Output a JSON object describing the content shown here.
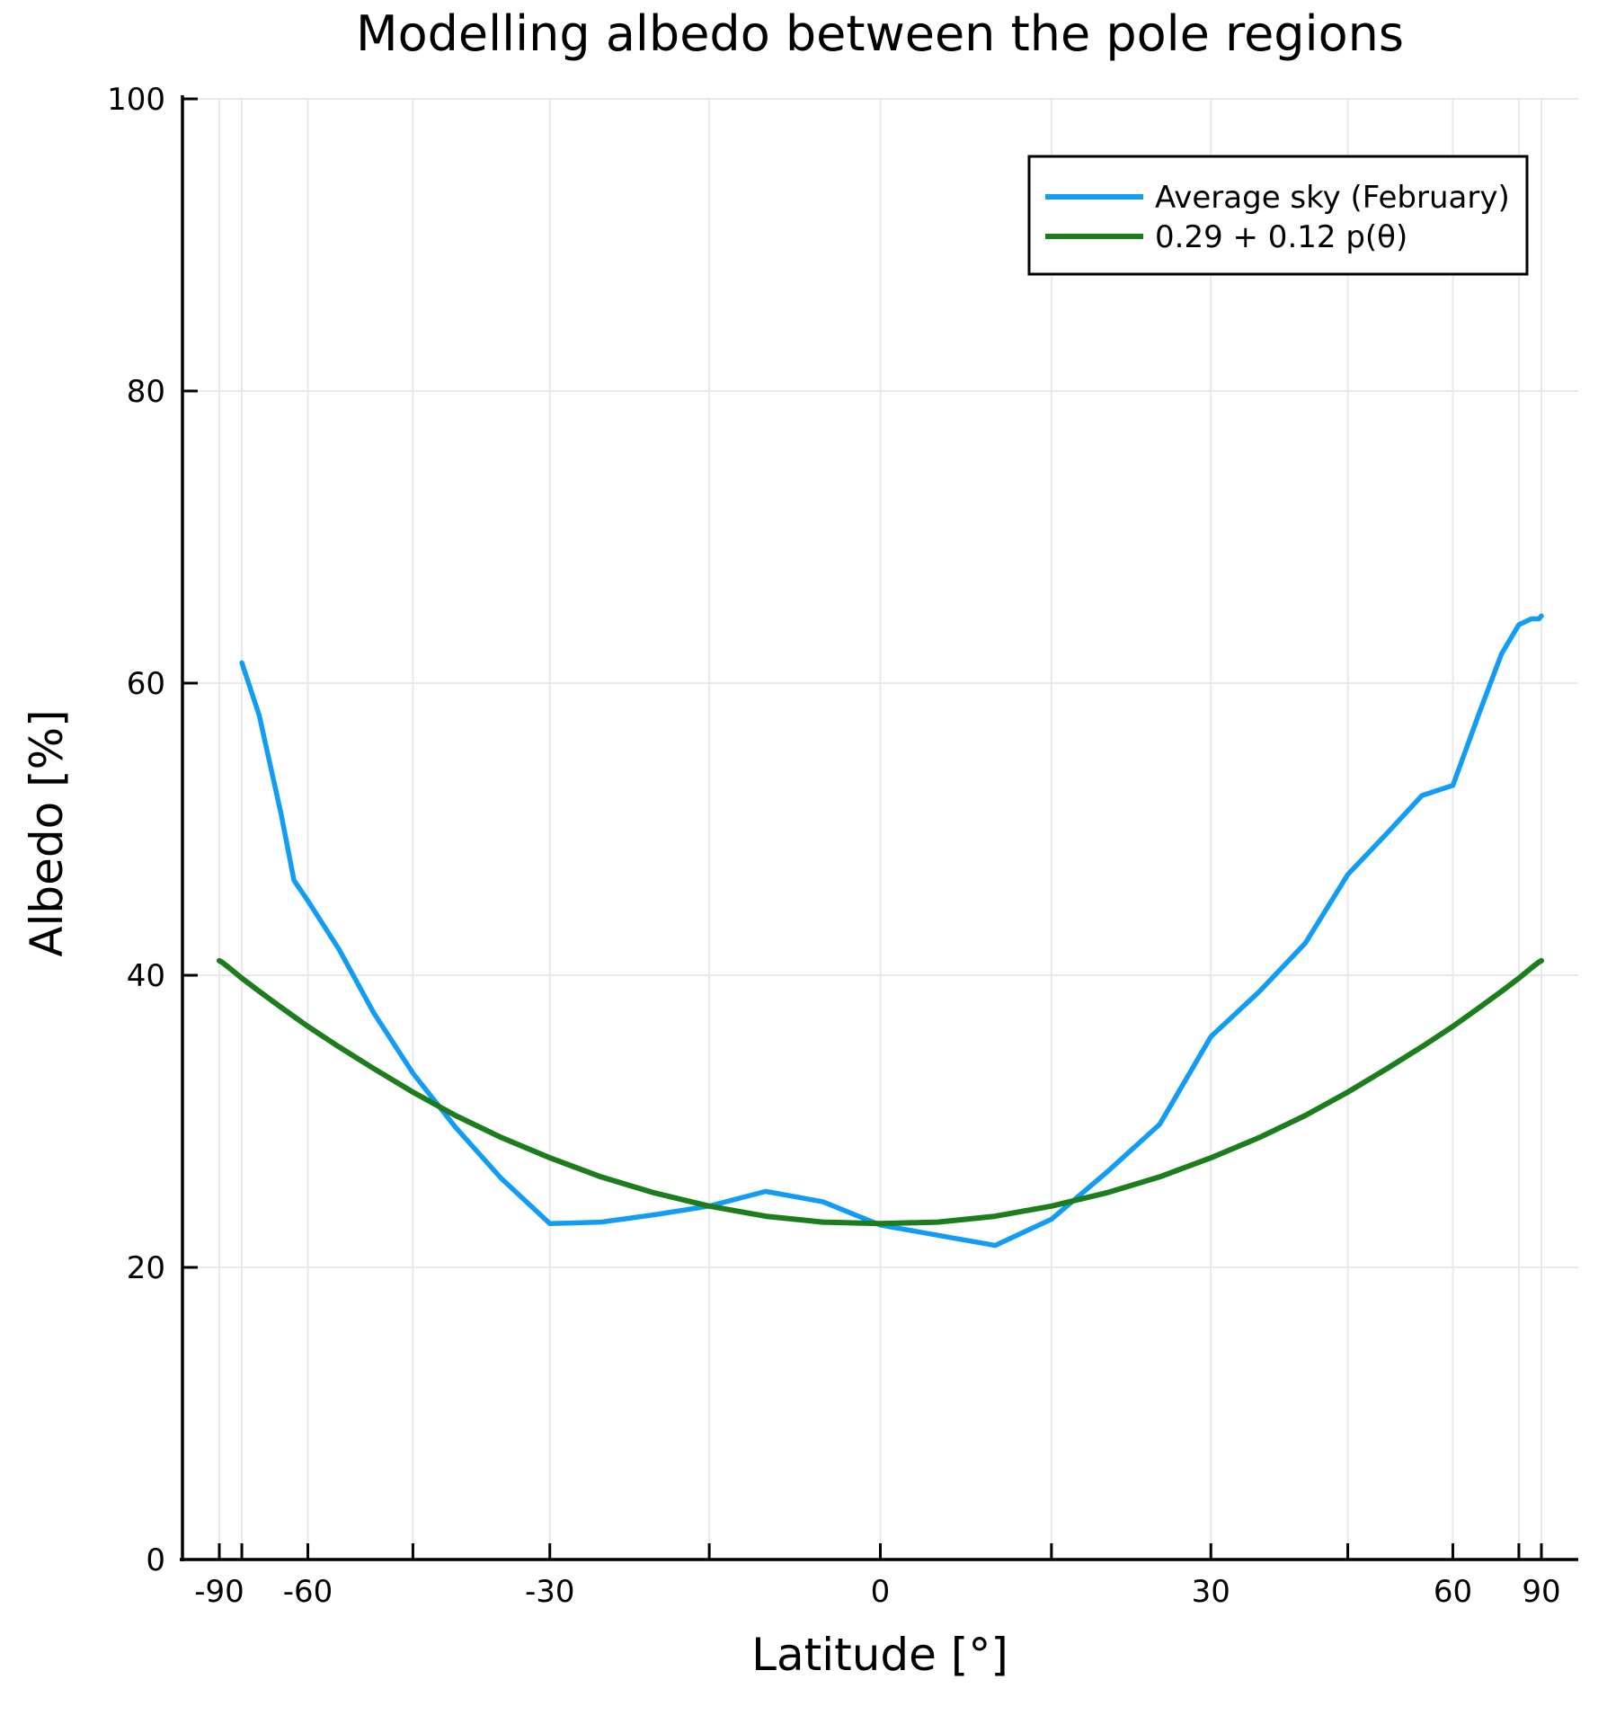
{
  "title": "Modelling albedo between the pole regions",
  "axes": {
    "xlabel": "Latitude [°]",
    "ylabel": "Albedo [%]",
    "x_scale": "sin(latitude)",
    "xlim_deg": [
      -90,
      90
    ],
    "x_tick_values": [
      -90,
      -60,
      -30,
      0,
      30,
      60,
      90
    ],
    "x_tick_labels": [
      "-90",
      "-60",
      "-30",
      "0",
      "30",
      "60",
      "90"
    ],
    "x_minor_tick_values": [
      -75,
      -45,
      -15,
      15,
      45,
      75
    ],
    "ylim": [
      0,
      100
    ],
    "y_tick_values": [
      0,
      20,
      40,
      60,
      80,
      100
    ],
    "y_tick_labels": [
      "0",
      "20",
      "40",
      "60",
      "80",
      "100"
    ],
    "grid": true
  },
  "legend": {
    "position": "top-right",
    "entries": [
      {
        "label": "Average sky (February)",
        "color": "#119CF6"
      },
      {
        "label": "0.29 + 0.12 p(θ)",
        "color": "#1B7D1B"
      }
    ]
  },
  "colors": {
    "background": "#FFFFFF",
    "grid": "#E9E9E9",
    "axis": "#000000",
    "blue_series": "#119CF6",
    "green_series": "#1B7D1B"
  },
  "chart_data": {
    "type": "line",
    "title": "Modelling albedo between the pole regions",
    "xlabel": "Latitude [°]",
    "ylabel": "Albedo [%]",
    "x_axis_scale": "sin(latitude)",
    "xlim_deg": [
      -90,
      90
    ],
    "ylim": [
      0,
      100
    ],
    "grid": true,
    "legend_position": "top-right",
    "series": [
      {
        "name": "Average sky (February)",
        "color": "#119CF6",
        "x": [
          -75,
          -70,
          -65,
          -62.5,
          -60,
          -55,
          -50,
          -45,
          -40,
          -35,
          -30,
          -25,
          -20,
          -15,
          -10,
          -5,
          0,
          5,
          10,
          15,
          20,
          25,
          30,
          35,
          40,
          45,
          50,
          55,
          60,
          65,
          70,
          75,
          80,
          85,
          90
        ],
        "y": [
          61.4,
          57.8,
          51.0,
          46.5,
          45.1,
          41.8,
          37.4,
          33.3,
          29.6,
          26.1,
          23.0,
          23.1,
          23.6,
          24.2,
          25.2,
          24.5,
          22.9,
          22.2,
          21.5,
          23.3,
          26.5,
          29.8,
          35.8,
          38.9,
          42.2,
          46.9,
          49.7,
          52.3,
          53.0,
          58.0,
          62.0,
          64.0,
          64.4,
          64.4,
          64.6
        ]
      },
      {
        "name": "0.29 + 0.12 p(θ)",
        "color": "#1B7D1B",
        "x": [
          -90,
          -85,
          -80,
          -75,
          -70,
          -65,
          -60,
          -55,
          -50,
          -45,
          -40,
          -35,
          -30,
          -25,
          -20,
          -15,
          -10,
          -5,
          0,
          5,
          10,
          15,
          20,
          25,
          30,
          35,
          40,
          45,
          50,
          55,
          60,
          65,
          70,
          75,
          80,
          85,
          90
        ],
        "y": [
          41.0,
          40.9,
          40.5,
          39.8,
          38.9,
          37.8,
          36.5,
          35.1,
          33.6,
          32.0,
          30.4,
          28.9,
          27.5,
          26.2,
          25.1,
          24.2,
          23.5,
          23.1,
          23.0,
          23.1,
          23.5,
          24.2,
          25.1,
          26.2,
          27.5,
          28.9,
          30.4,
          32.0,
          33.6,
          35.1,
          36.5,
          37.8,
          38.9,
          39.8,
          40.5,
          40.9,
          41.0
        ]
      }
    ]
  }
}
